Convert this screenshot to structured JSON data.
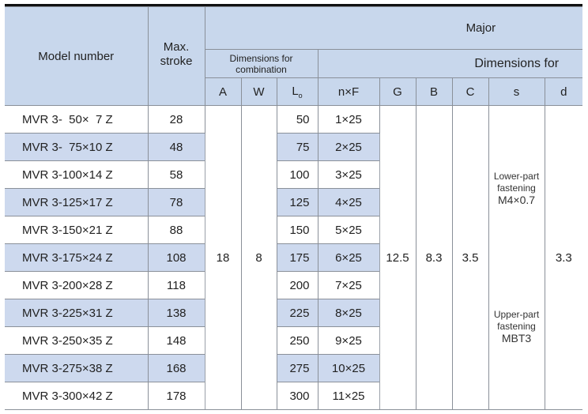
{
  "header": {
    "model": "Model number",
    "stroke": "Max. stroke",
    "major": "Major",
    "combination": "Dimensions for combination",
    "dimensions_for": "Dimensions for",
    "cols": {
      "A": "A",
      "W": "W",
      "L": "L",
      "L_sub": "o",
      "nF": "n×F",
      "G": "G",
      "B": "B",
      "C": "C",
      "s": "s",
      "d": "d"
    }
  },
  "rows": [
    {
      "model": "MVR 3-  50×  7 Z",
      "stroke": "28",
      "L": "50",
      "nF": "1×25"
    },
    {
      "model": "MVR 3-  75×10 Z",
      "stroke": "48",
      "L": "75",
      "nF": "2×25"
    },
    {
      "model": "MVR 3-100×14 Z",
      "stroke": "58",
      "L": "100",
      "nF": "3×25"
    },
    {
      "model": "MVR 3-125×17 Z",
      "stroke": "78",
      "L": "125",
      "nF": "4×25"
    },
    {
      "model": "MVR 3-150×21 Z",
      "stroke": "88",
      "L": "150",
      "nF": "5×25"
    },
    {
      "model": "MVR 3-175×24 Z",
      "stroke": "108",
      "L": "175",
      "nF": "6×25"
    },
    {
      "model": "MVR 3-200×28 Z",
      "stroke": "118",
      "L": "200",
      "nF": "7×25"
    },
    {
      "model": "MVR 3-225×31 Z",
      "stroke": "138",
      "L": "225",
      "nF": "8×25"
    },
    {
      "model": "MVR 3-250×35 Z",
      "stroke": "148",
      "L": "250",
      "nF": "9×25"
    },
    {
      "model": "MVR 3-275×38 Z",
      "stroke": "168",
      "L": "275",
      "nF": "10×25"
    },
    {
      "model": "MVR 3-300×42 Z",
      "stroke": "178",
      "L": "300",
      "nF": "11×25"
    }
  ],
  "common": {
    "A": "18",
    "W": "8",
    "G": "12.5",
    "B": "8.3",
    "C": "3.5",
    "d": "3.3",
    "s_lower_label": "Lower-part fastening",
    "s_lower_value": "M4×0.7",
    "s_upper_label": "Upper-part fastening",
    "s_upper_value": "MBT3"
  }
}
